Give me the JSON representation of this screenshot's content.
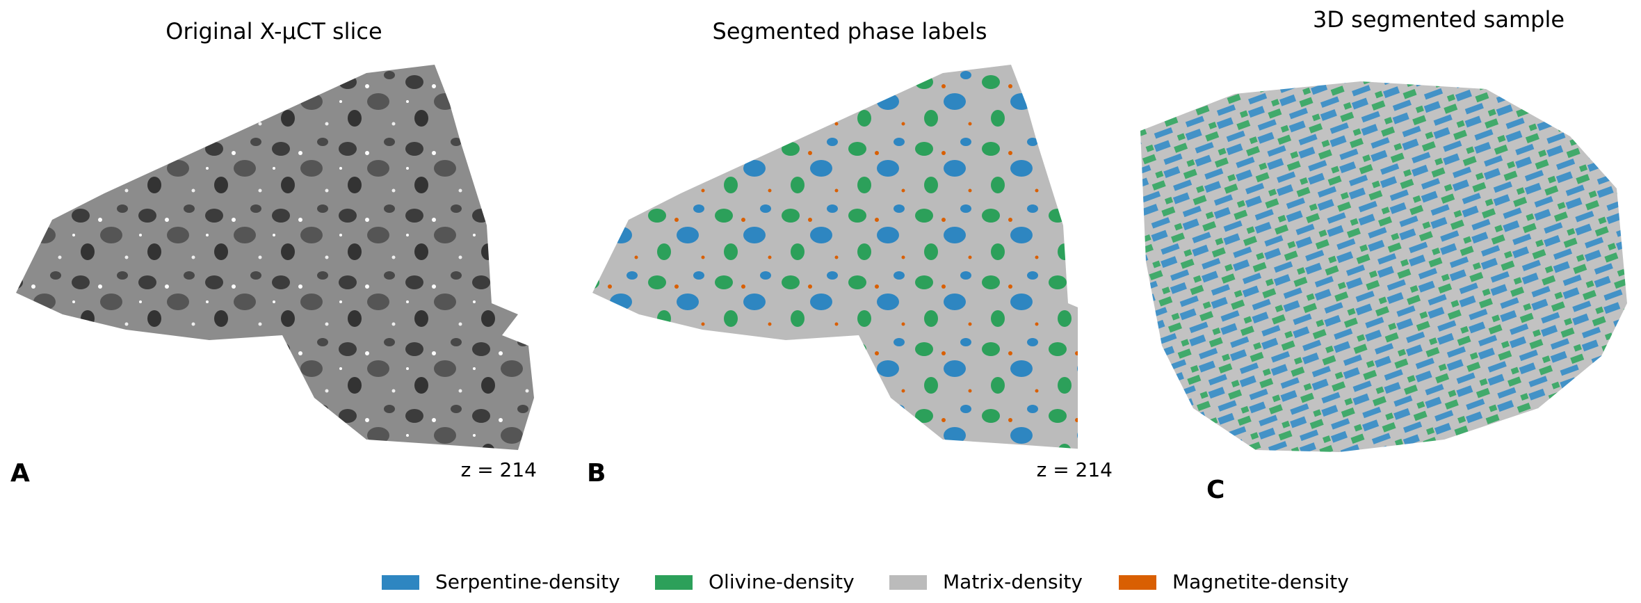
{
  "panels": [
    {
      "title": "Original X-μCT slice",
      "label": "A",
      "annotation": "z = 214"
    },
    {
      "title": "Segmented phase labels",
      "label": "B",
      "annotation": "z = 214"
    },
    {
      "title": "3D segmented sample",
      "label": "C"
    }
  ],
  "legend": [
    {
      "label": "Serpentine-density",
      "color": "#2e86c1"
    },
    {
      "label": "Olivine-density",
      "color": "#2ca05a"
    },
    {
      "label": "Matrix-density",
      "color": "#bbbbbb"
    },
    {
      "label": "Magnetite-density",
      "color": "#d95f02"
    }
  ]
}
